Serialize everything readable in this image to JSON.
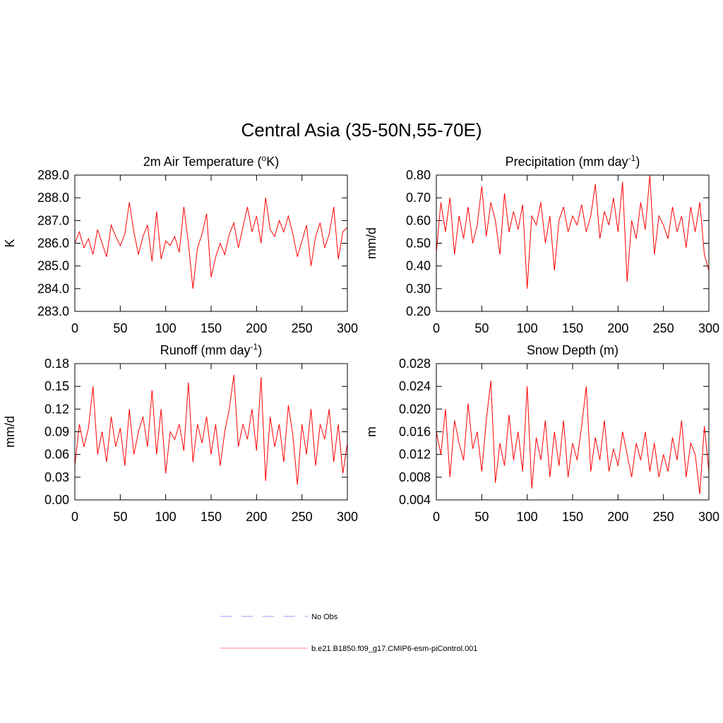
{
  "suptitle": "Central Asia (35-50N,55-70E)",
  "chart_data": [
    {
      "type": "line",
      "title": [
        "2m Air Temperature (",
        "o",
        "K)"
      ],
      "ylabel": "K",
      "xlim": [
        0,
        300
      ],
      "xticks": [
        0,
        50,
        100,
        150,
        200,
        250,
        300
      ],
      "ylim": [
        283,
        289
      ],
      "yticks": [
        {
          "value": 283,
          "label": "283.0"
        },
        {
          "value": 284,
          "label": "284.0"
        },
        {
          "value": 285,
          "label": "285.0"
        },
        {
          "value": 286,
          "label": "286.0"
        },
        {
          "value": 287,
          "label": "287.0"
        },
        {
          "value": 288,
          "label": "288.0"
        },
        {
          "value": 289,
          "label": "289.0"
        }
      ],
      "x": [
        0,
        5,
        10,
        15,
        20,
        25,
        30,
        35,
        40,
        45,
        50,
        55,
        60,
        65,
        70,
        75,
        80,
        85,
        90,
        95,
        100,
        105,
        110,
        115,
        120,
        125,
        130,
        135,
        140,
        145,
        150,
        155,
        160,
        165,
        170,
        175,
        180,
        185,
        190,
        195,
        200,
        205,
        210,
        215,
        220,
        225,
        230,
        235,
        240,
        245,
        250,
        255,
        260,
        265,
        270,
        275,
        280,
        285,
        290,
        295,
        300
      ],
      "series": [
        {
          "color": "#ff0000",
          "values": [
            286.0,
            286.5,
            285.8,
            286.2,
            285.5,
            286.6,
            286.0,
            285.4,
            286.8,
            286.3,
            285.9,
            286.4,
            287.8,
            286.5,
            285.5,
            286.3,
            286.8,
            285.2,
            287.4,
            285.3,
            286.1,
            285.9,
            286.3,
            285.6,
            287.6,
            286.0,
            284.0,
            285.8,
            286.4,
            287.3,
            284.5,
            285.4,
            286.0,
            285.5,
            286.4,
            286.9,
            285.8,
            286.7,
            287.6,
            286.5,
            287.2,
            286.0,
            288.0,
            286.6,
            286.3,
            287.0,
            286.5,
            287.2,
            286.4,
            285.4,
            286.1,
            286.8,
            285.0,
            286.3,
            286.9,
            285.8,
            286.4,
            287.6,
            285.3,
            286.5,
            286.7
          ]
        }
      ]
    },
    {
      "type": "line",
      "title": [
        "Precipitation (mm day",
        "-1",
        ")"
      ],
      "ylabel": "mm/d",
      "xlim": [
        0,
        300
      ],
      "xticks": [
        0,
        50,
        100,
        150,
        200,
        250,
        300
      ],
      "ylim": [
        0.2,
        0.8
      ],
      "yticks": [
        {
          "value": 0.2,
          "label": "0.20"
        },
        {
          "value": 0.3,
          "label": "0.30"
        },
        {
          "value": 0.4,
          "label": "0.40"
        },
        {
          "value": 0.5,
          "label": "0.50"
        },
        {
          "value": 0.6,
          "label": "0.60"
        },
        {
          "value": 0.7,
          "label": "0.70"
        },
        {
          "value": 0.8,
          "label": "0.80"
        }
      ],
      "x": [
        0,
        5,
        10,
        15,
        20,
        25,
        30,
        35,
        40,
        45,
        50,
        55,
        60,
        65,
        70,
        75,
        80,
        85,
        90,
        95,
        100,
        105,
        110,
        115,
        120,
        125,
        130,
        135,
        140,
        145,
        150,
        155,
        160,
        165,
        170,
        175,
        180,
        185,
        190,
        195,
        200,
        205,
        210,
        215,
        220,
        225,
        230,
        235,
        240,
        245,
        250,
        255,
        260,
        265,
        270,
        275,
        280,
        285,
        290,
        295,
        300
      ],
      "series": [
        {
          "color": "#ff0000",
          "values": [
            0.46,
            0.68,
            0.55,
            0.7,
            0.45,
            0.62,
            0.52,
            0.66,
            0.5,
            0.58,
            0.75,
            0.53,
            0.68,
            0.6,
            0.45,
            0.72,
            0.55,
            0.64,
            0.56,
            0.67,
            0.3,
            0.62,
            0.58,
            0.68,
            0.5,
            0.62,
            0.38,
            0.6,
            0.66,
            0.55,
            0.62,
            0.58,
            0.67,
            0.55,
            0.62,
            0.76,
            0.52,
            0.64,
            0.58,
            0.7,
            0.55,
            0.77,
            0.33,
            0.6,
            0.52,
            0.68,
            0.56,
            0.8,
            0.45,
            0.62,
            0.58,
            0.52,
            0.66,
            0.55,
            0.62,
            0.48,
            0.66,
            0.55,
            0.68,
            0.45,
            0.38
          ]
        }
      ]
    },
    {
      "type": "line",
      "title": [
        "Runoff (mm day",
        "-1",
        ")"
      ],
      "ylabel": "mm/d",
      "xlim": [
        0,
        300
      ],
      "xticks": [
        0,
        50,
        100,
        150,
        200,
        250,
        300
      ],
      "ylim": [
        0,
        0.18
      ],
      "yticks": [
        {
          "value": 0,
          "label": "0.00"
        },
        {
          "value": 0.03,
          "label": "0.03"
        },
        {
          "value": 0.06,
          "label": "0.06"
        },
        {
          "value": 0.09,
          "label": "0.09"
        },
        {
          "value": 0.12,
          "label": "0.12"
        },
        {
          "value": 0.15,
          "label": "0.15"
        },
        {
          "value": 0.18,
          "label": "0.18"
        }
      ],
      "x": [
        0,
        5,
        10,
        15,
        20,
        25,
        30,
        35,
        40,
        45,
        50,
        55,
        60,
        65,
        70,
        75,
        80,
        85,
        90,
        95,
        100,
        105,
        110,
        115,
        120,
        125,
        130,
        135,
        140,
        145,
        150,
        155,
        160,
        165,
        170,
        175,
        180,
        185,
        190,
        195,
        200,
        205,
        210,
        215,
        220,
        225,
        230,
        235,
        240,
        245,
        250,
        255,
        260,
        265,
        270,
        275,
        280,
        285,
        290,
        295,
        300
      ],
      "series": [
        {
          "color": "#ff0000",
          "values": [
            0.045,
            0.1,
            0.07,
            0.095,
            0.15,
            0.06,
            0.09,
            0.05,
            0.11,
            0.07,
            0.095,
            0.045,
            0.12,
            0.06,
            0.09,
            0.11,
            0.07,
            0.145,
            0.06,
            0.12,
            0.035,
            0.09,
            0.08,
            0.1,
            0.065,
            0.155,
            0.05,
            0.1,
            0.075,
            0.11,
            0.06,
            0.1,
            0.045,
            0.09,
            0.12,
            0.165,
            0.07,
            0.1,
            0.08,
            0.12,
            0.065,
            0.162,
            0.025,
            0.11,
            0.07,
            0.1,
            0.05,
            0.125,
            0.085,
            0.02,
            0.1,
            0.06,
            0.12,
            0.045,
            0.1,
            0.08,
            0.12,
            0.05,
            0.1,
            0.035,
            0.075
          ]
        }
      ]
    },
    {
      "type": "line",
      "title": [
        "Snow Depth (m)"
      ],
      "ylabel": "m",
      "xlim": [
        0,
        300
      ],
      "xticks": [
        0,
        50,
        100,
        150,
        200,
        250,
        300
      ],
      "ylim": [
        0.004,
        0.028
      ],
      "yticks": [
        {
          "value": 0.004,
          "label": "0.004"
        },
        {
          "value": 0.008,
          "label": "0.008"
        },
        {
          "value": 0.012,
          "label": "0.012"
        },
        {
          "value": 0.016,
          "label": "0.016"
        },
        {
          "value": 0.02,
          "label": "0.020"
        },
        {
          "value": 0.024,
          "label": "0.024"
        },
        {
          "value": 0.028,
          "label": "0.028"
        }
      ],
      "x": [
        0,
        5,
        10,
        15,
        20,
        25,
        30,
        35,
        40,
        45,
        50,
        55,
        60,
        65,
        70,
        75,
        80,
        85,
        90,
        95,
        100,
        105,
        110,
        115,
        120,
        125,
        130,
        135,
        140,
        145,
        150,
        155,
        160,
        165,
        170,
        175,
        180,
        185,
        190,
        195,
        200,
        205,
        210,
        215,
        220,
        225,
        230,
        235,
        240,
        245,
        250,
        255,
        260,
        265,
        270,
        275,
        280,
        285,
        290,
        295,
        300
      ],
      "series": [
        {
          "color": "#ff0000",
          "values": [
            0.016,
            0.012,
            0.02,
            0.008,
            0.018,
            0.014,
            0.011,
            0.021,
            0.013,
            0.016,
            0.009,
            0.018,
            0.025,
            0.007,
            0.014,
            0.01,
            0.019,
            0.011,
            0.016,
            0.009,
            0.024,
            0.006,
            0.015,
            0.011,
            0.018,
            0.008,
            0.016,
            0.01,
            0.018,
            0.008,
            0.014,
            0.011,
            0.017,
            0.024,
            0.009,
            0.015,
            0.011,
            0.018,
            0.009,
            0.013,
            0.01,
            0.016,
            0.012,
            0.008,
            0.014,
            0.011,
            0.016,
            0.009,
            0.014,
            0.008,
            0.012,
            0.009,
            0.015,
            0.011,
            0.018,
            0.008,
            0.014,
            0.012,
            0.005,
            0.017,
            0.009
          ]
        }
      ]
    }
  ],
  "legend": [
    {
      "name": "No Obs",
      "color": "#aab0ff",
      "dashed": true
    },
    {
      "name": "b.e21.B1850.f09_g17.CMIP6-esm-piControl.001",
      "color": "#ff9e9e",
      "dashed": false
    }
  ]
}
